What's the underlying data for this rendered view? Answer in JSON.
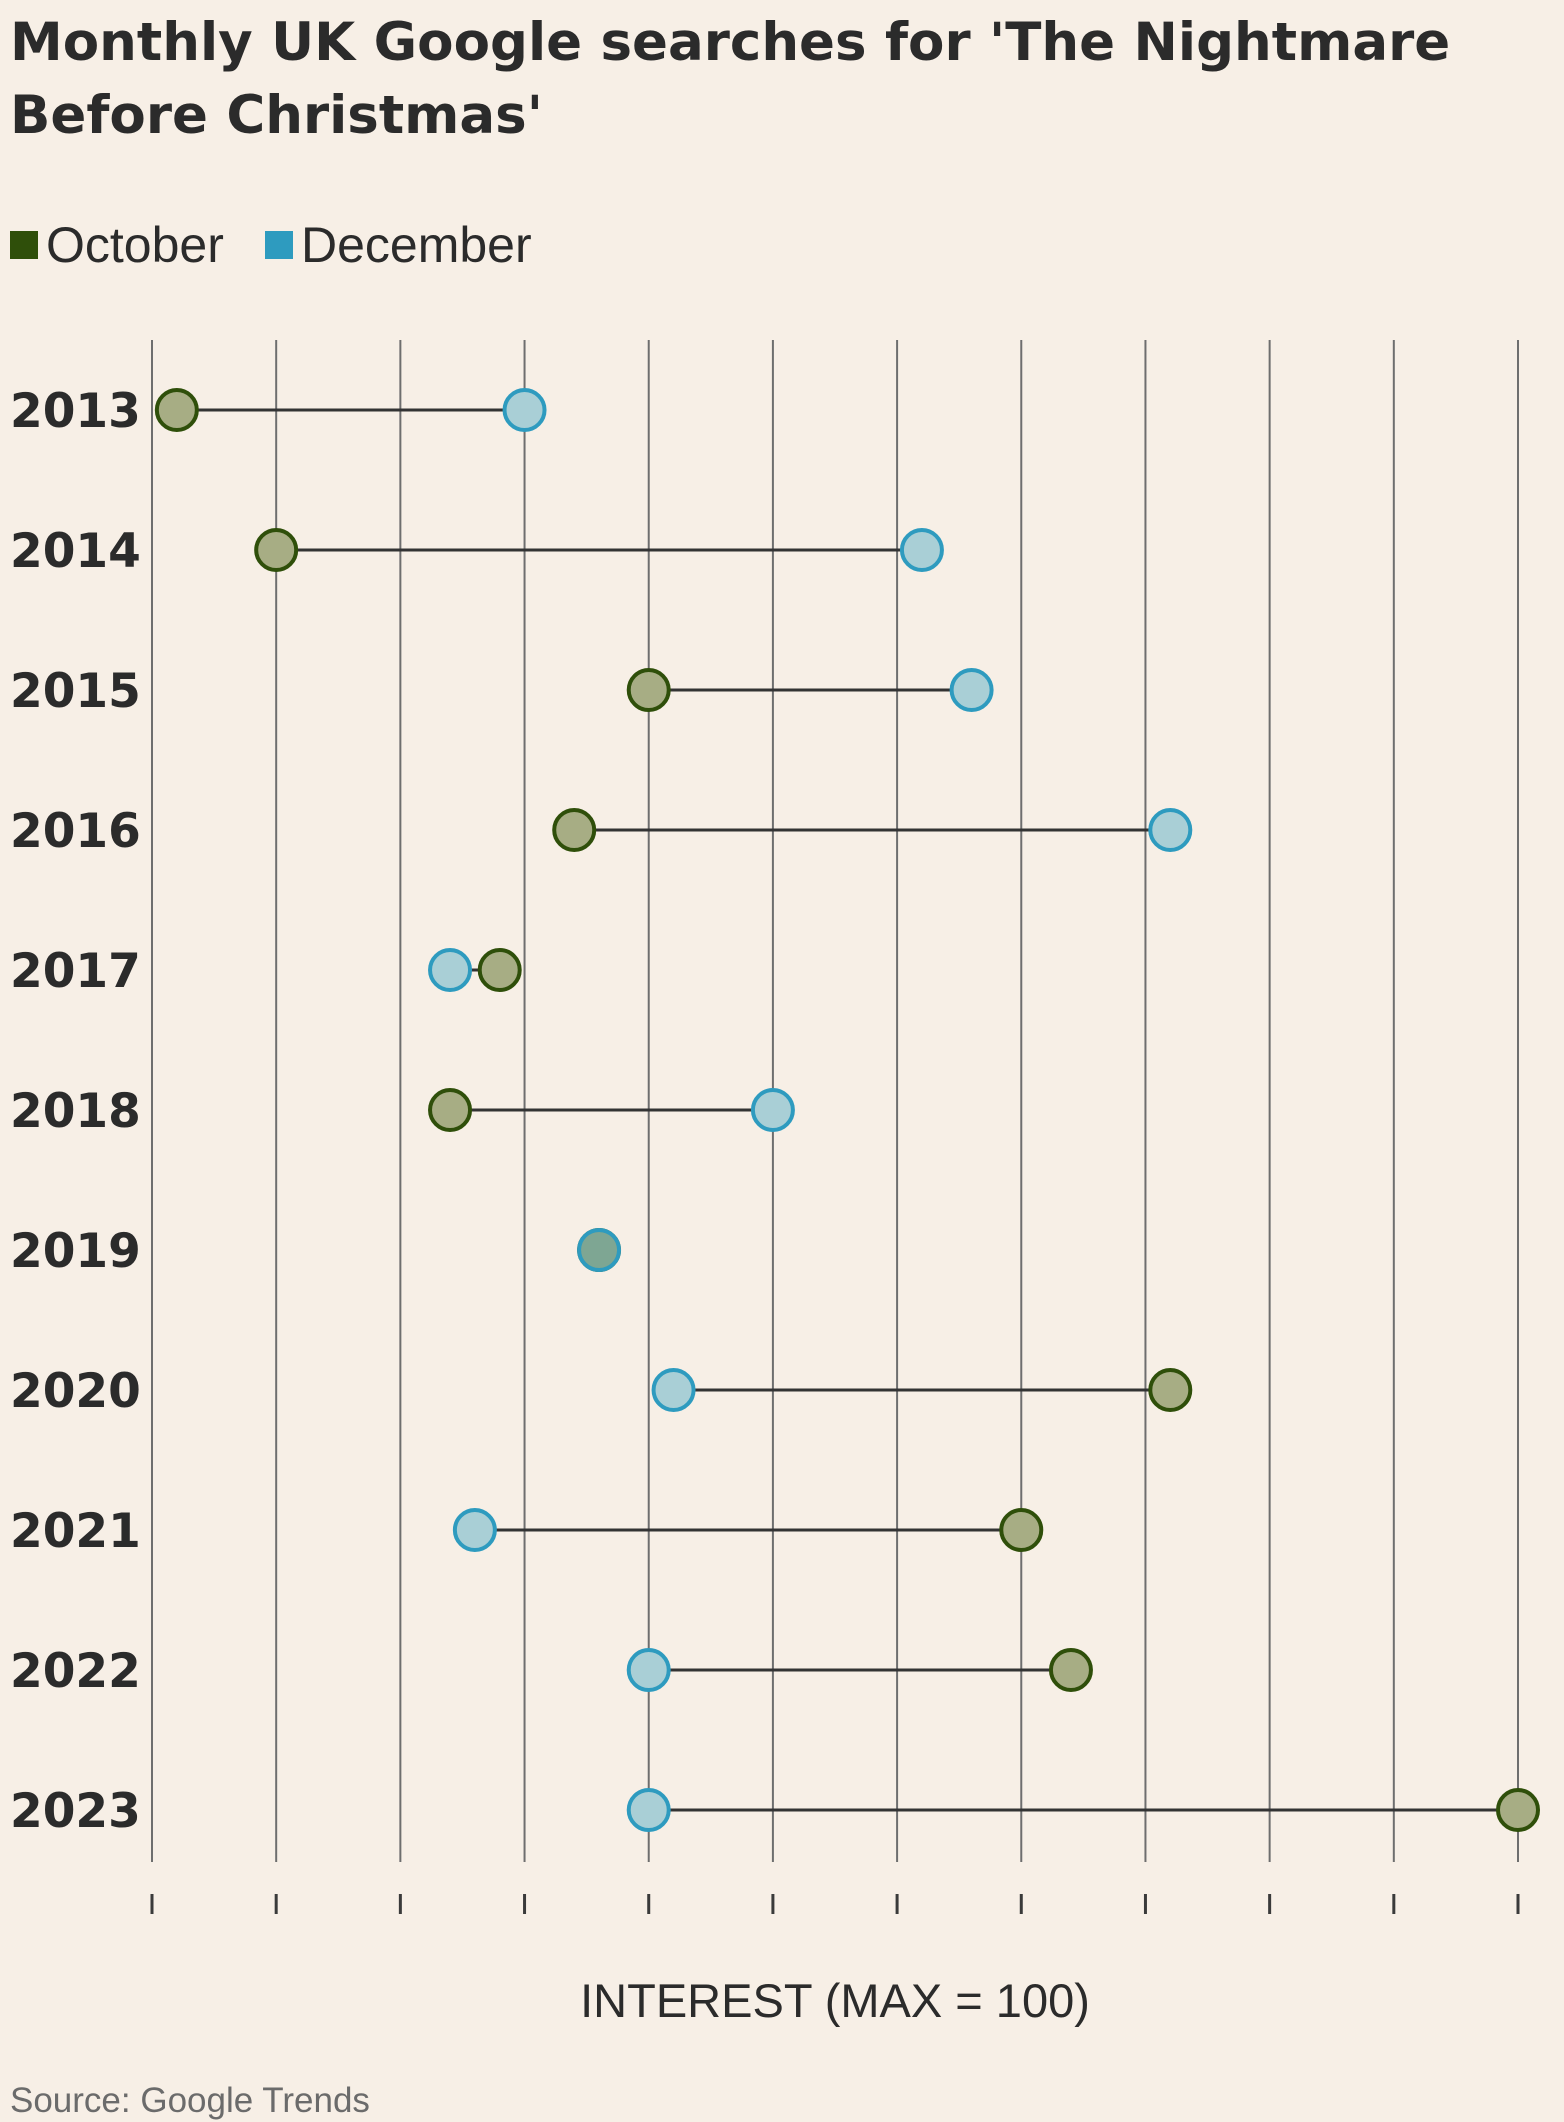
{
  "chart_data": {
    "type": "dumbbell",
    "title": "Monthly UK Google searches for 'The Nightmare Before Christmas'",
    "title_lines": [
      "Monthly UK Google searches for 'The Nightmare",
      "Before Christmas'"
    ],
    "xlabel": "INTEREST (MAX = 100)",
    "source": "Source: Google Trends",
    "xlim": [
      0,
      55
    ],
    "grid": true,
    "legend_position": "top-left",
    "categories": [
      "2013",
      "2014",
      "2015",
      "2016",
      "2017",
      "2018",
      "2019",
      "2020",
      "2021",
      "2022",
      "2023"
    ],
    "series": [
      {
        "name": "October",
        "color": "#2f4f0a",
        "fill": "#a7ad84",
        "values": [
          1,
          5,
          20,
          17,
          14,
          12,
          18,
          41,
          35,
          37,
          55
        ]
      },
      {
        "name": "December",
        "color": "#2e9bbf",
        "fill": "#a9cfd6",
        "values": [
          15,
          31,
          33,
          41,
          12,
          25,
          18,
          21,
          13,
          20,
          20
        ]
      }
    ]
  }
}
